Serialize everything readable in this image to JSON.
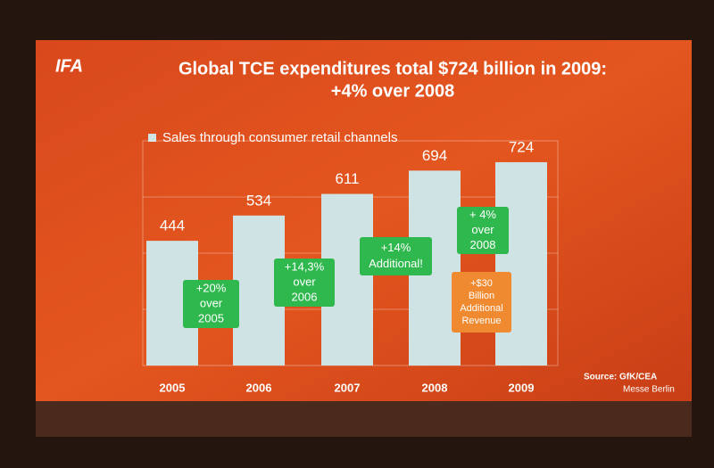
{
  "chart_data": {
    "type": "bar",
    "logo": "IFA",
    "title": [
      "Global TCE expenditures total $724 billion in 2009:",
      "+4% over 2008"
    ],
    "legend": "Sales through consumer retail channels",
    "categories": [
      "2005",
      "2006",
      "2007",
      "2008",
      "2009"
    ],
    "values": [
      444,
      534,
      611,
      694,
      724
    ],
    "color": "#cfe2e4",
    "ylim": [
      0,
      800
    ],
    "grid": true,
    "annotations": [
      {
        "lines": [
          "+20%",
          "over",
          "2005"
        ],
        "color": "#2fb84e"
      },
      {
        "lines": [
          "+14,3%",
          "over",
          "2006"
        ],
        "color": "#2fb84e"
      },
      {
        "lines": [
          "+14%",
          "Additional!"
        ],
        "color": "#2fb84e"
      },
      {
        "lines": [
          "+ 4%",
          "over",
          "2008"
        ],
        "color": "#2fb84e"
      },
      {
        "lines": [
          "+$30",
          "Billion",
          "Additional",
          "Revenue"
        ],
        "color": "#f08a30"
      }
    ],
    "source": "Source: GfK/CEA",
    "publisher": "Messe Berlin"
  }
}
